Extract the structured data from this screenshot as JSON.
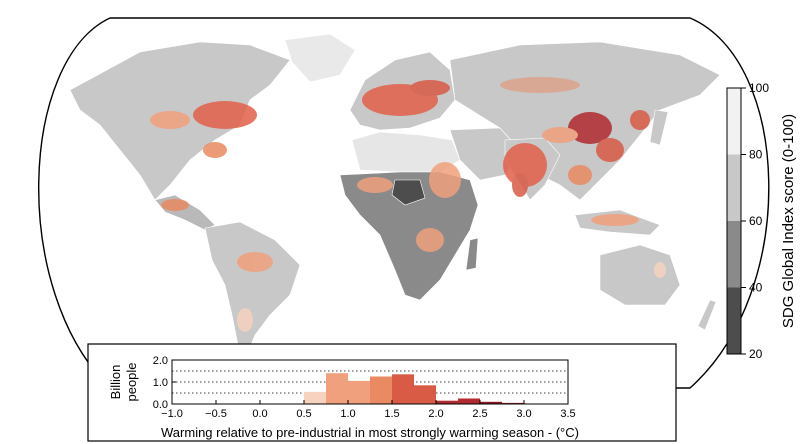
{
  "colorbar": {
    "label": "SDG Global Index score (0-100)",
    "ticks": [
      "100",
      "80",
      "60",
      "40",
      "20"
    ],
    "bands": [
      {
        "range": [
          80,
          100
        ],
        "color": "#f2f2f2"
      },
      {
        "range": [
          60,
          80
        ],
        "color": "#c8c8c8"
      },
      {
        "range": [
          40,
          60
        ],
        "color": "#8a8a8a"
      },
      {
        "range": [
          20,
          40
        ],
        "color": "#4d4d4d"
      }
    ]
  },
  "chart_data": {
    "type": "bar",
    "title": "",
    "xlabel": "Warming relative to pre-industrial in most strongly warming season - (°C)",
    "ylabel_lines": [
      "Billion",
      "people"
    ],
    "xlim": [
      -1.0,
      3.5
    ],
    "ylim": [
      0.0,
      2.0
    ],
    "xticks": [
      "−1.0",
      "−0.5",
      "0.0",
      "0.5",
      "1.0",
      "1.5",
      "2.0",
      "2.5",
      "3.0",
      "3.5"
    ],
    "yticks": [
      "0.0",
      "1.0",
      "2.0"
    ],
    "grid": true,
    "bin_width": 0.25,
    "bins": [
      {
        "start": 0.5,
        "value": 0.55,
        "color": "#f6d2bf"
      },
      {
        "start": 0.75,
        "value": 1.4,
        "color": "#f0a07c"
      },
      {
        "start": 1.0,
        "value": 1.05,
        "color": "#f0a07c"
      },
      {
        "start": 1.25,
        "value": 1.25,
        "color": "#e98a62"
      },
      {
        "start": 1.5,
        "value": 1.35,
        "color": "#d95a45"
      },
      {
        "start": 1.75,
        "value": 0.85,
        "color": "#d95a45"
      },
      {
        "start": 2.0,
        "value": 0.15,
        "color": "#b02a30"
      },
      {
        "start": 2.25,
        "value": 0.25,
        "color": "#b02a30"
      },
      {
        "start": 2.5,
        "value": 0.1,
        "color": "#8c1a22"
      },
      {
        "start": 2.75,
        "value": 0.05,
        "color": "#8c1a22"
      }
    ]
  }
}
